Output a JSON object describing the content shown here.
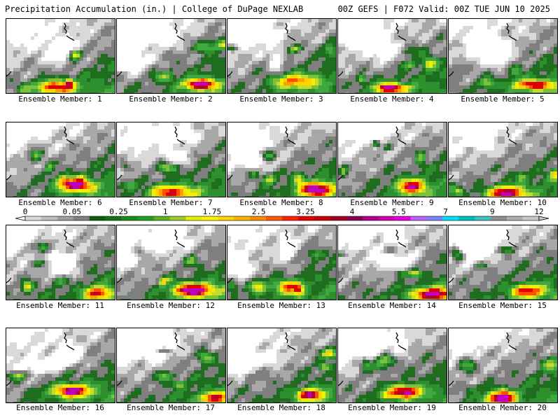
{
  "header": {
    "left": "Precipitation Accumulation (in.) | College of DuPage NEXLAB",
    "right": "00Z GEFS | F072 Valid: 00Z TUE JUN 10 2025"
  },
  "panel_label_prefix": "Ensemble Member: ",
  "members": [
    1,
    2,
    3,
    4,
    5,
    6,
    7,
    8,
    9,
    10,
    11,
    12,
    13,
    14,
    15,
    16,
    17,
    18,
    19,
    20
  ],
  "colorbar": {
    "tick_labels": [
      "0",
      "0.05",
      "0.25",
      "1",
      "1.75",
      "2.5",
      "3.25",
      "4",
      "5.5",
      "7",
      "9",
      "12"
    ],
    "colors": [
      "#d9d9d9",
      "#bdbdbd",
      "#9e9e9e",
      "#808080",
      "#0f5e0f",
      "#137313",
      "#1a8c1a",
      "#22a022",
      "#58b325",
      "#9ccc2a",
      "#e5f000",
      "#fff200",
      "#ffd400",
      "#ffb000",
      "#ff8c00",
      "#ff5a00",
      "#ff2000",
      "#e60000",
      "#c80000",
      "#a3001e",
      "#8b0050",
      "#b0008c",
      "#d200b4",
      "#e600dc",
      "#c060ff",
      "#7f7fff",
      "#00e0ff",
      "#00bfbf",
      "#40c0c0",
      "#909090",
      "#b0b0b0",
      "#c8c8c8"
    ]
  },
  "map_palette": {
    "levels": [
      "#ffffff",
      "#d9d9d9",
      "#a8a8a8",
      "#7f7f7f",
      "#1f6e1f",
      "#2d8f2d",
      "#3fa83f",
      "#7fc03a",
      "#c6dc2c",
      "#f0f000",
      "#ffd400",
      "#ffa000",
      "#ff5000",
      "#e00000",
      "#b0003a",
      "#c000c0"
    ]
  },
  "coast_color": "#000000"
}
